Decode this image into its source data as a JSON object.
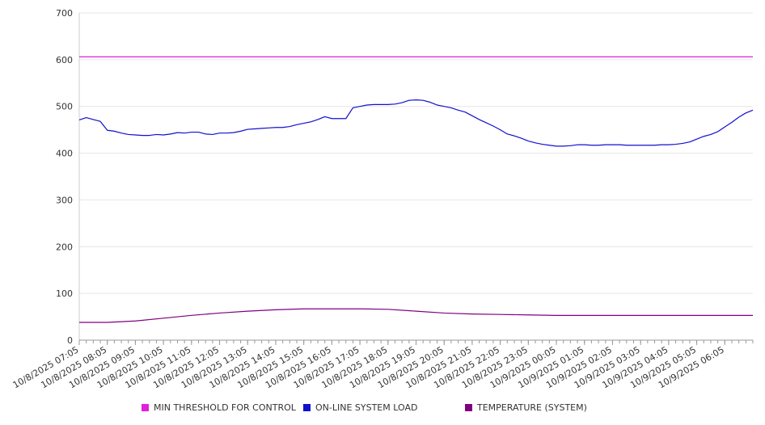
{
  "chart_data": {
    "type": "line",
    "title": "",
    "xlabel": "",
    "ylabel": "",
    "ylim": [
      0,
      700
    ],
    "yticks": [
      0,
      100,
      200,
      300,
      400,
      500,
      600,
      700
    ],
    "x_start": "10/8/2025 07:05",
    "x_end": "10/9/2025 07:05",
    "x_tick_labels": [
      "10/8/2025 07:05",
      "10/8/2025 08:05",
      "10/8/2025 09:05",
      "10/8/2025 10:05",
      "10/8/2025 11:05",
      "10/8/2025 12:05",
      "10/8/2025 13:05",
      "10/8/2025 14:05",
      "10/8/2025 15:05",
      "10/8/2025 16:05",
      "10/8/2025 17:05",
      "10/8/2025 18:05",
      "10/8/2025 19:05",
      "10/8/2025 20:05",
      "10/8/2025 21:05",
      "10/8/2025 22:05",
      "10/8/2025 23:05",
      "10/9/2025 00:05",
      "10/9/2025 01:05",
      "10/9/2025 02:05",
      "10/9/2025 03:05",
      "10/9/2025 04:05",
      "10/9/2025 05:05",
      "10/9/2025 06:05"
    ],
    "grid": "horizontal",
    "legend_position": "bottom",
    "series": [
      {
        "name": "MIN THRESHOLD FOR CONTROL",
        "color": "#e020e0",
        "x": [
          "10/8/2025 07:05",
          "10/9/2025 07:05"
        ],
        "y": [
          606,
          606
        ]
      },
      {
        "name": "ON-LINE SYSTEM LOAD",
        "color": "#1010d0",
        "x": [
          "10/8/2025 07:05",
          "10/8/2025 07:20",
          "10/8/2025 07:35",
          "10/8/2025 07:50",
          "10/8/2025 08:05",
          "10/8/2025 08:20",
          "10/8/2025 08:35",
          "10/8/2025 08:50",
          "10/8/2025 09:05",
          "10/8/2025 09:20",
          "10/8/2025 09:35",
          "10/8/2025 09:50",
          "10/8/2025 10:05",
          "10/8/2025 10:20",
          "10/8/2025 10:35",
          "10/8/2025 10:50",
          "10/8/2025 11:05",
          "10/8/2025 11:20",
          "10/8/2025 11:35",
          "10/8/2025 11:50",
          "10/8/2025 12:05",
          "10/8/2025 12:20",
          "10/8/2025 12:35",
          "10/8/2025 12:50",
          "10/8/2025 13:05",
          "10/8/2025 13:20",
          "10/8/2025 13:35",
          "10/8/2025 13:50",
          "10/8/2025 14:05",
          "10/8/2025 14:20",
          "10/8/2025 14:35",
          "10/8/2025 14:50",
          "10/8/2025 15:05",
          "10/8/2025 15:20",
          "10/8/2025 15:35",
          "10/8/2025 15:50",
          "10/8/2025 16:05",
          "10/8/2025 16:20",
          "10/8/2025 16:35",
          "10/8/2025 16:50",
          "10/8/2025 17:05",
          "10/8/2025 17:20",
          "10/8/2025 17:35",
          "10/8/2025 17:50",
          "10/8/2025 18:05",
          "10/8/2025 18:20",
          "10/8/2025 18:35",
          "10/8/2025 18:50",
          "10/8/2025 19:05",
          "10/8/2025 19:20",
          "10/8/2025 19:35",
          "10/8/2025 19:50",
          "10/8/2025 20:05",
          "10/8/2025 20:20",
          "10/8/2025 20:35",
          "10/8/2025 20:50",
          "10/8/2025 21:05",
          "10/8/2025 21:20",
          "10/8/2025 21:35",
          "10/8/2025 21:50",
          "10/8/2025 22:05",
          "10/8/2025 22:20",
          "10/8/2025 22:35",
          "10/8/2025 22:50",
          "10/8/2025 23:05",
          "10/8/2025 23:20",
          "10/8/2025 23:35",
          "10/8/2025 23:50",
          "10/9/2025 00:05",
          "10/9/2025 00:20",
          "10/9/2025 00:35",
          "10/9/2025 00:50",
          "10/9/2025 01:05",
          "10/9/2025 01:20",
          "10/9/2025 01:35",
          "10/9/2025 01:50",
          "10/9/2025 02:05",
          "10/9/2025 02:20",
          "10/9/2025 02:35",
          "10/9/2025 02:50",
          "10/9/2025 03:05",
          "10/9/2025 03:20",
          "10/9/2025 03:35",
          "10/9/2025 03:50",
          "10/9/2025 04:05",
          "10/9/2025 04:20",
          "10/9/2025 04:35",
          "10/9/2025 04:50",
          "10/9/2025 05:05",
          "10/9/2025 05:20",
          "10/9/2025 05:35",
          "10/9/2025 05:50",
          "10/9/2025 06:05",
          "10/9/2025 06:20",
          "10/9/2025 06:35",
          "10/9/2025 06:50",
          "10/9/2025 07:05"
        ],
        "y": [
          471,
          476,
          472,
          468,
          449,
          447,
          443,
          440,
          439,
          438,
          438,
          440,
          439,
          441,
          444,
          443,
          445,
          445,
          441,
          440,
          443,
          443,
          444,
          447,
          451,
          452,
          453,
          454,
          455,
          455,
          457,
          461,
          464,
          467,
          472,
          478,
          474,
          474,
          474,
          497,
          500,
          503,
          504,
          504,
          504,
          505,
          508,
          513,
          514,
          513,
          509,
          503,
          500,
          497,
          492,
          488,
          480,
          472,
          465,
          458,
          450,
          441,
          437,
          432,
          426,
          422,
          419,
          417,
          415,
          415,
          416,
          418,
          418,
          417,
          417,
          418,
          418,
          418,
          417,
          417,
          417,
          417,
          417,
          418,
          418,
          419,
          421,
          424,
          430,
          436,
          440,
          446,
          456,
          466,
          477,
          486,
          492
        ]
      },
      {
        "name": "TEMPERATURE (SYSTEM)",
        "color": "#800080",
        "x": [
          "10/8/2025 07:05",
          "10/8/2025 08:05",
          "10/8/2025 09:05",
          "10/8/2025 10:05",
          "10/8/2025 11:05",
          "10/8/2025 12:05",
          "10/8/2025 13:05",
          "10/8/2025 14:05",
          "10/8/2025 15:05",
          "10/8/2025 16:05",
          "10/8/2025 17:05",
          "10/8/2025 18:05",
          "10/8/2025 19:05",
          "10/8/2025 20:05",
          "10/8/2025 21:05",
          "10/8/2025 22:05",
          "10/8/2025 23:05",
          "10/9/2025 00:05",
          "10/9/2025 01:05",
          "10/9/2025 02:05",
          "10/9/2025 03:05",
          "10/9/2025 04:05",
          "10/9/2025 05:05",
          "10/9/2025 06:05",
          "10/9/2025 07:05"
        ],
        "y": [
          38,
          38,
          41,
          47,
          53,
          58,
          62,
          65,
          67,
          67,
          67,
          66,
          62,
          58,
          56,
          55,
          54,
          53,
          53,
          53,
          53,
          53,
          53,
          53,
          53
        ]
      }
    ]
  }
}
